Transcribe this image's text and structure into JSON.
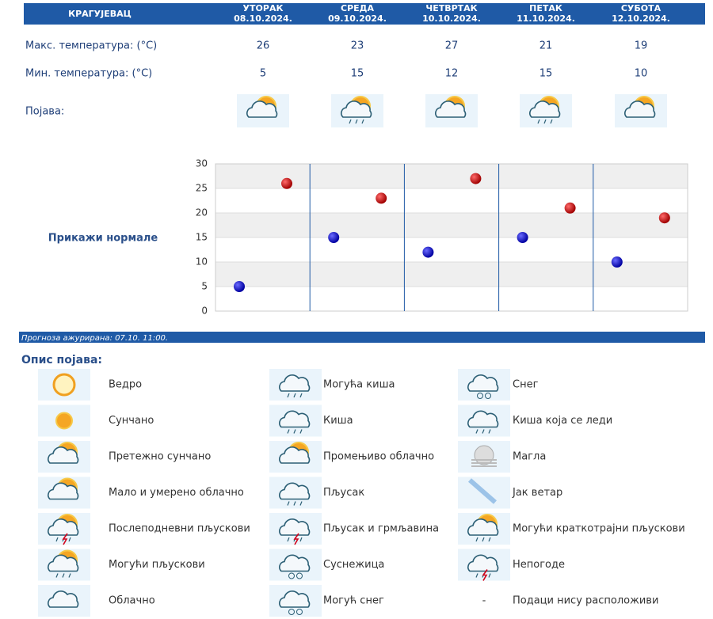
{
  "header": {
    "city": "КРАГУЈЕВАЦ"
  },
  "days": [
    {
      "name": "УТОРАК",
      "date": "08.10.2024.",
      "max": 26,
      "min": 5
    },
    {
      "name": "СРЕДА",
      "date": "09.10.2024.",
      "max": 23,
      "min": 15
    },
    {
      "name": "ЧЕТВРТАК",
      "date": "10.10.2024.",
      "max": 27,
      "min": 12
    },
    {
      "name": "ПЕТАК",
      "date": "11.10.2024.",
      "max": 21,
      "min": 15
    },
    {
      "name": "СУБОТА",
      "date": "12.10.2024.",
      "max": 19,
      "min": 10
    }
  ],
  "rows": {
    "max": "Макс. температура: (°C)",
    "min": "Мин. температура: (°C)",
    "phenomenon": "Појава:"
  },
  "chart": {
    "label": "Прикажи нормале",
    "ylim": [
      0,
      30
    ],
    "yticks": [
      0,
      5,
      10,
      15,
      20,
      25,
      30
    ]
  },
  "updated": "Прогноза ажурирана:  07.10. 11:00.",
  "legend": {
    "title": "Опис појава:",
    "items": [
      {
        "label": "Ведро"
      },
      {
        "label": "Сунчано"
      },
      {
        "label": "Претежно сунчано"
      },
      {
        "label": "Мало и умерено облачно"
      },
      {
        "label": "Послеподневни пљускови"
      },
      {
        "label": "Могући пљускови"
      },
      {
        "label": "Облачно"
      },
      {
        "label": "Могућа киша"
      },
      {
        "label": "Киша"
      },
      {
        "label": "Промењиво облачно"
      },
      {
        "label": "Пљусак"
      },
      {
        "label": "Пљусак и грмљавина"
      },
      {
        "label": "Суснежица"
      },
      {
        "label": "Могућ снег"
      },
      {
        "label": "Снег"
      },
      {
        "label": "Киша која се леди"
      },
      {
        "label": "Магла"
      },
      {
        "label": "Јак ветар"
      },
      {
        "label": "Могући краткотрајни пљускови"
      },
      {
        "label": "Непогоде"
      },
      {
        "symbol": "-",
        "label": "Подаци нису расположиви"
      }
    ]
  }
}
